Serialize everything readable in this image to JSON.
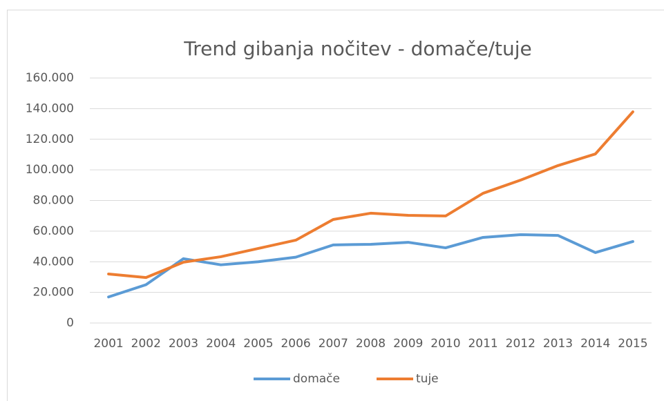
{
  "chart_data": {
    "type": "line",
    "title": "Trend gibanja nočitev - domače/tuje",
    "categories": [
      "2001",
      "2002",
      "2003",
      "2004",
      "2005",
      "2006",
      "2007",
      "2008",
      "2009",
      "2010",
      "2011",
      "2012",
      "2013",
      "2014",
      "2015"
    ],
    "series": [
      {
        "name": "domače",
        "color": "#5b9bd5",
        "values": [
          17000,
          25000,
          42000,
          38000,
          40000,
          43000,
          51000,
          51400,
          52700,
          49100,
          55900,
          57700,
          57200,
          46000,
          53200
        ]
      },
      {
        "name": "tuje",
        "color": "#ed7d31",
        "values": [
          32000,
          29700,
          39700,
          43300,
          48700,
          54100,
          67600,
          71700,
          70300,
          69900,
          84700,
          93300,
          102800,
          110400,
          137900
        ]
      }
    ],
    "ylim": [
      0,
      160000
    ],
    "yticks": [
      0,
      {
        "value": 20000,
        "label": "20.000"
      },
      {
        "value": 40000,
        "label": "40.000"
      },
      {
        "value": 60000,
        "label": "60.000"
      },
      {
        "value": 80000,
        "label": "80.000"
      },
      {
        "value": 100000,
        "label": "100.000"
      },
      {
        "value": 120000,
        "label": "120.000"
      },
      {
        "value": 140000,
        "label": "140.000"
      },
      {
        "value": 160000,
        "label": "160.000"
      }
    ],
    "grid": true,
    "legend": "bottom"
  }
}
